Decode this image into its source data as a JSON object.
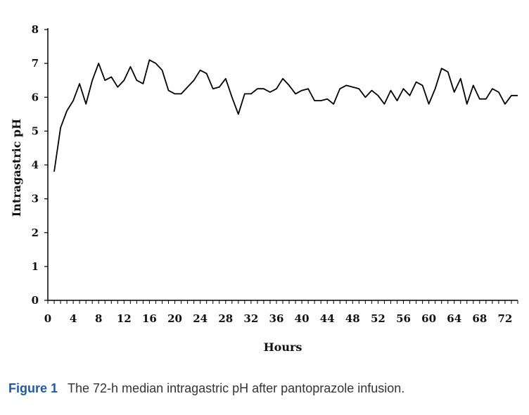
{
  "caption": {
    "label": "Figure 1",
    "text": "The 72-h median intragastric pH after pantoprazole infusion."
  },
  "chart_data": {
    "type": "line",
    "title": "",
    "xlabel": "Hours",
    "ylabel": "Intragastric pH",
    "xlim": [
      0,
      74
    ],
    "ylim": [
      0,
      8
    ],
    "x_ticks": [
      0,
      4,
      8,
      12,
      16,
      20,
      24,
      28,
      32,
      36,
      40,
      44,
      48,
      52,
      56,
      60,
      64,
      68,
      72
    ],
    "y_ticks": [
      0,
      1,
      2,
      3,
      4,
      5,
      6,
      7,
      8
    ],
    "grid": false,
    "legend": "none",
    "line_color": "#000000",
    "series": [
      {
        "x": [
          1,
          2,
          3,
          4,
          5,
          6,
          7,
          8,
          9,
          10,
          11,
          12,
          13,
          14,
          15,
          16,
          17,
          18,
          19,
          20,
          21,
          22,
          23,
          24,
          25,
          26,
          27,
          28,
          29,
          30,
          31,
          32,
          33,
          34,
          35,
          36,
          37,
          38,
          39,
          40,
          41,
          42,
          43,
          44,
          45,
          46,
          47,
          48,
          49,
          50,
          51,
          52,
          53,
          54,
          55,
          56,
          57,
          58,
          59,
          60,
          61,
          62,
          63,
          64,
          65,
          66,
          67,
          68,
          69,
          70,
          71,
          72,
          73,
          74
        ],
        "values": [
          3.8,
          5.1,
          5.6,
          5.9,
          6.4,
          5.8,
          6.5,
          7.0,
          6.5,
          6.6,
          6.3,
          6.5,
          6.9,
          6.5,
          6.4,
          7.1,
          7.0,
          6.8,
          6.2,
          6.1,
          6.1,
          6.3,
          6.5,
          6.8,
          6.7,
          6.25,
          6.3,
          6.55,
          6.0,
          5.5,
          6.1,
          6.1,
          6.25,
          6.25,
          6.15,
          6.25,
          6.55,
          6.35,
          6.1,
          6.2,
          6.25,
          5.9,
          5.9,
          5.95,
          5.8,
          6.25,
          6.35,
          6.3,
          6.25,
          6.0,
          6.2,
          6.05,
          5.8,
          6.2,
          5.9,
          6.25,
          6.05,
          6.45,
          6.35,
          5.8,
          6.25,
          6.85,
          6.75,
          6.15,
          6.55,
          5.8,
          6.35,
          5.95,
          5.95,
          6.25,
          6.15,
          5.8,
          6.05,
          6.05
        ]
      }
    ]
  }
}
